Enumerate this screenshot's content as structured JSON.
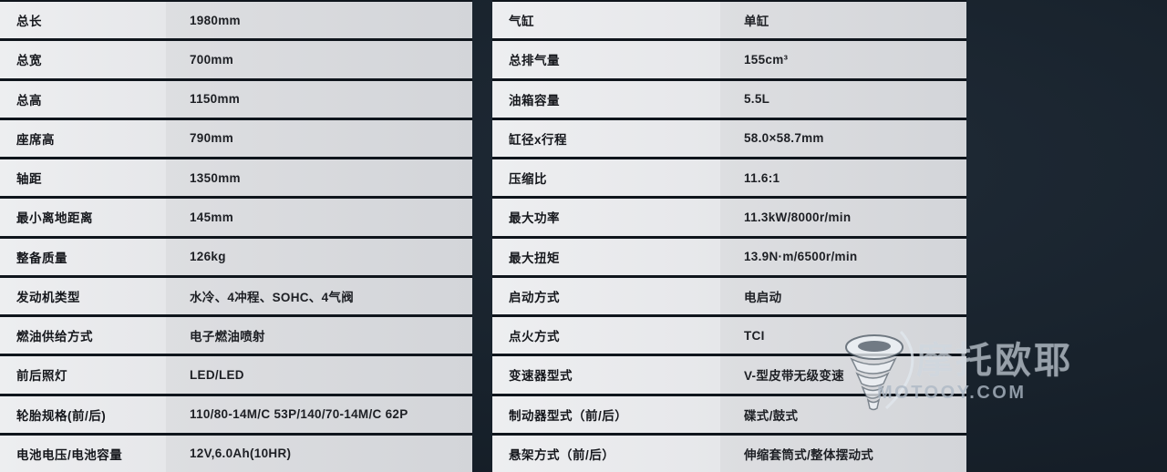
{
  "colors": {
    "background": "#18222c",
    "row_separator": "#0f151c",
    "label_cell": "#e9eaec",
    "value_cell": "#d6d8db",
    "text": "#15171c"
  },
  "left_table": {
    "rows": [
      {
        "label": "总长",
        "value": "1980mm"
      },
      {
        "label": "总宽",
        "value": "700mm"
      },
      {
        "label": "总高",
        "value": "1150mm"
      },
      {
        "label": "座席高",
        "value": "790mm"
      },
      {
        "label": "轴距",
        "value": "1350mm"
      },
      {
        "label": "最小离地距离",
        "value": "145mm"
      },
      {
        "label": "整备质量",
        "value": "126kg"
      },
      {
        "label": "发动机类型",
        "value": "水冷、4冲程、SOHC、4气阀"
      },
      {
        "label": "燃油供给方式",
        "value": "电子燃油喷射"
      },
      {
        "label": "前后照灯",
        "value": "LED/LED"
      },
      {
        "label": "轮胎规格(前/后)",
        "value": "110/80-14M/C 53P/140/70-14M/C 62P"
      },
      {
        "label": "电池电压/电池容量",
        "value": "12V,6.0Ah(10HR)"
      }
    ]
  },
  "right_table": {
    "rows": [
      {
        "label": "气缸",
        "value": "单缸"
      },
      {
        "label": "总排气量",
        "value": "155cm³"
      },
      {
        "label": "油箱容量",
        "value": "5.5L"
      },
      {
        "label": "缸径x行程",
        "value": "58.0×58.7mm"
      },
      {
        "label": "压缩比",
        "value": "11.6:1"
      },
      {
        "label": "最大功率",
        "value": "11.3kW/8000r/min"
      },
      {
        "label": "最大扭矩",
        "value": "13.9N·m/6500r/min"
      },
      {
        "label": "启动方式",
        "value": "电启动"
      },
      {
        "label": "点火方式",
        "value": "TCI"
      },
      {
        "label": "变速器型式",
        "value": "V-型皮带无级变速"
      },
      {
        "label": "制动器型式（前/后）",
        "value": "碟式/鼓式"
      },
      {
        "label": "悬架方式（前/后）",
        "value": "伸缩套筒式/整体摆动式"
      }
    ]
  },
  "watermark": {
    "brand": "摩托欧耶",
    "site": "MOTOOY.COM"
  }
}
